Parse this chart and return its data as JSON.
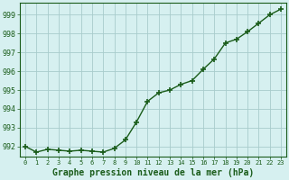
{
  "x": [
    0,
    1,
    2,
    3,
    4,
    5,
    6,
    7,
    8,
    9,
    10,
    11,
    12,
    13,
    14,
    15,
    16,
    17,
    18,
    19,
    20,
    21,
    22,
    23
  ],
  "y": [
    992.0,
    991.7,
    991.85,
    991.8,
    991.75,
    991.8,
    991.75,
    991.7,
    991.9,
    992.35,
    993.3,
    994.4,
    994.85,
    995.0,
    995.3,
    995.5,
    996.1,
    996.65,
    997.5,
    997.7,
    998.1,
    998.55,
    999.0,
    999.3
  ],
  "line_color": "#1a5c1a",
  "marker": "+",
  "marker_size": 4,
  "marker_lw": 1.2,
  "bg_color": "#d6f0f0",
  "grid_color": "#a8cccc",
  "xlabel": "Graphe pression niveau de la mer (hPa)",
  "xlabel_fontsize": 7,
  "xlabel_color": "#1a5c1a",
  "ylabel_ticks": [
    992,
    993,
    994,
    995,
    996,
    997,
    998,
    999
  ],
  "xtick_labels": [
    "0",
    "1",
    "2",
    "3",
    "4",
    "5",
    "6",
    "7",
    "8",
    "9",
    "10",
    "11",
    "12",
    "13",
    "14",
    "15",
    "16",
    "17",
    "18",
    "19",
    "20",
    "21",
    "22",
    "23"
  ],
  "ytick_fontsize": 6,
  "xtick_fontsize": 5,
  "ylim": [
    991.45,
    999.65
  ],
  "xlim": [
    -0.5,
    23.5
  ],
  "tick_color": "#1a5c1a",
  "line_width": 1.0
}
